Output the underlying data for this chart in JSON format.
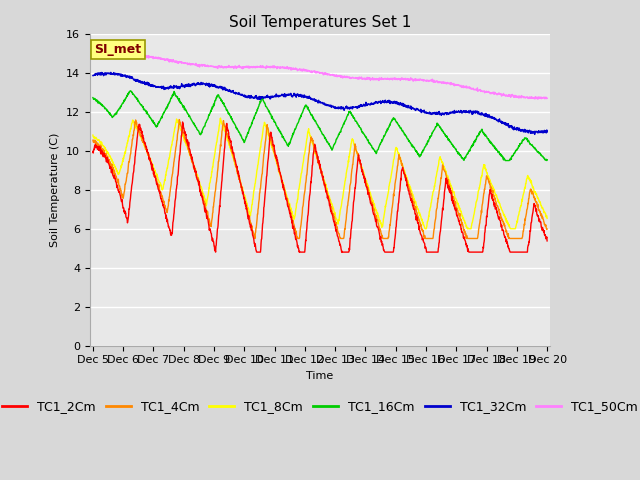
{
  "title": "Soil Temperatures Set 1",
  "xlabel": "Time",
  "ylabel": "Soil Temperature (C)",
  "ylim": [
    0,
    16
  ],
  "yticks": [
    0,
    2,
    4,
    6,
    8,
    10,
    12,
    14,
    16
  ],
  "x_labels": [
    "Dec 5",
    "Dec 6",
    "Dec 7",
    "Dec 8",
    "Dec 9",
    "Dec 10",
    "Dec 11",
    "Dec 12",
    "Dec 13",
    "Dec 14",
    "Dec 15",
    "Dec 16",
    "Dec 17",
    "Dec 18",
    "Dec 19",
    "Dec 20"
  ],
  "series_colors": [
    "#ff0000",
    "#ff8800",
    "#ffff00",
    "#00cc00",
    "#0000cc",
    "#ff80ff"
  ],
  "series_labels": [
    "TC1_2Cm",
    "TC1_4Cm",
    "TC1_8Cm",
    "TC1_16Cm",
    "TC1_32Cm",
    "TC1_50Cm"
  ],
  "annotation_text": "SI_met",
  "annotation_color": "#800000",
  "annotation_bg": "#ffff80",
  "background_color": "#e8e8e8",
  "grid_color": "#ffffff",
  "title_fontsize": 11,
  "axis_fontsize": 8,
  "legend_fontsize": 9,
  "figwidth": 6.4,
  "figheight": 4.8,
  "dpi": 100
}
